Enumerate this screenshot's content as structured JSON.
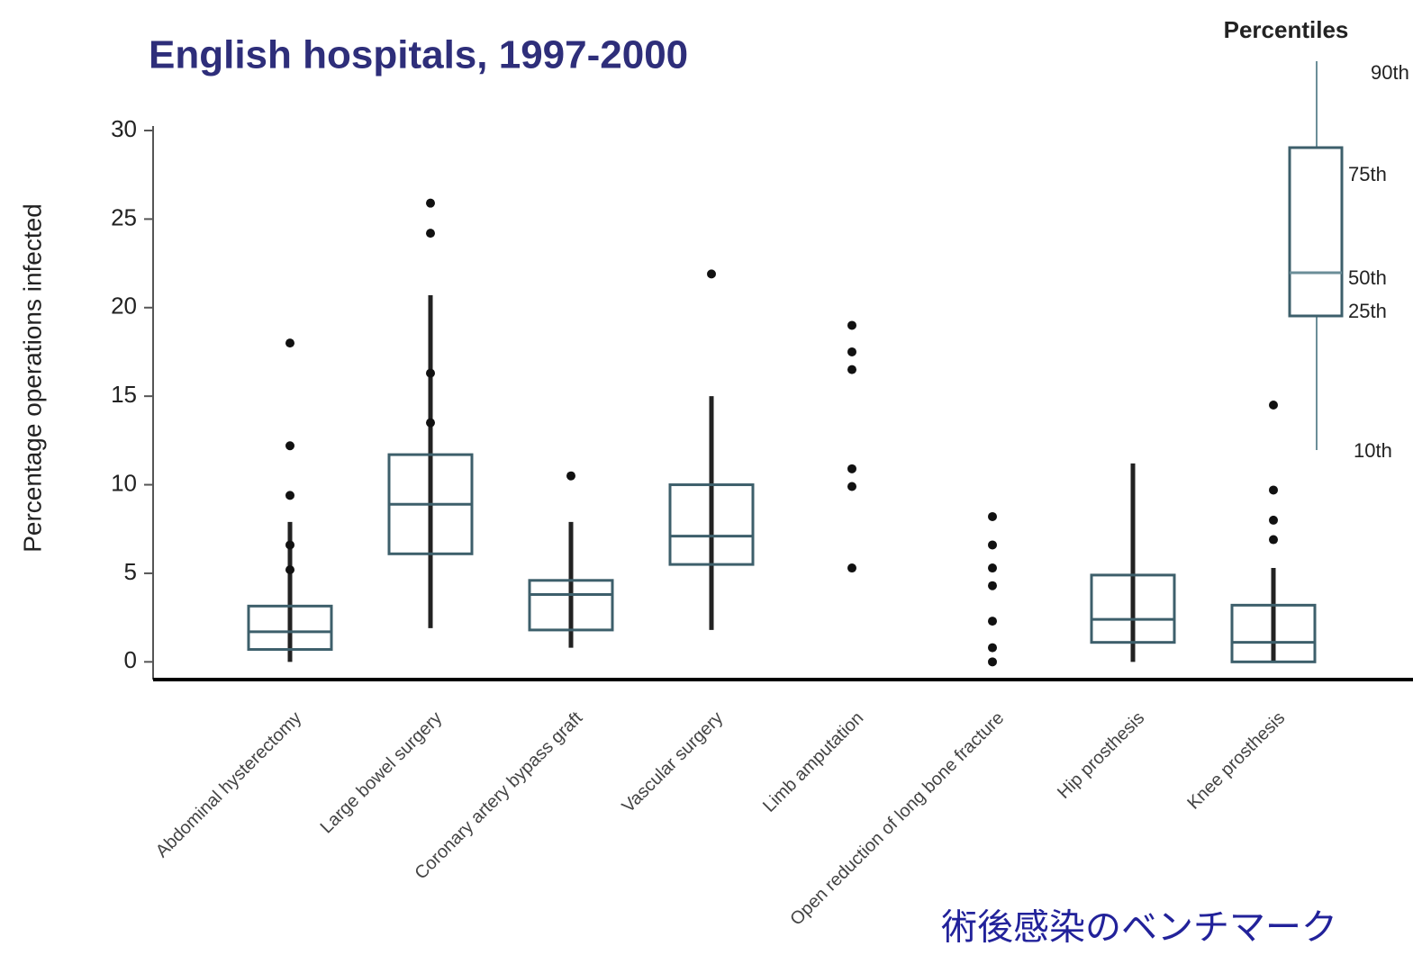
{
  "chart_data": {
    "type": "box",
    "title": "English hospitals, 1997-2000",
    "y_label": "Percentage operations infected",
    "footer": "術後感染のベンチマーク",
    "categories": [
      "Abdominal hysterectomy",
      "Large bowel surgery",
      "Coronary artery bypass graft",
      "Vascular surgery",
      "Limb amputation",
      "Open reduction of long bone fracture",
      "Hip prosthesis",
      "Knee prosthesis"
    ],
    "boxes": [
      {
        "whisker_low": 0,
        "q1": 0.7,
        "median": 1.7,
        "q3": 3.15,
        "whisker_high": 7.9,
        "outliers": [
          18,
          12.2,
          9.4,
          6.6,
          5.2
        ]
      },
      {
        "whisker_low": 1.9,
        "q1": 6.1,
        "median": 8.9,
        "q3": 11.7,
        "whisker_high": 20.7,
        "outliers": [
          25.9,
          24.2,
          16.3,
          13.5
        ]
      },
      {
        "whisker_low": 0.8,
        "q1": 1.8,
        "median": 3.8,
        "q3": 4.6,
        "whisker_high": 7.9,
        "outliers": [
          10.5
        ]
      },
      {
        "whisker_low": 1.8,
        "q1": 5.5,
        "median": 7.1,
        "q3": 10,
        "whisker_high": 15,
        "outliers": [
          21.9
        ]
      },
      {
        "whisker_low": null,
        "q1": null,
        "median": null,
        "q3": null,
        "whisker_high": null,
        "outliers": [
          19,
          17.5,
          16.5,
          10.9,
          9.9,
          5.3
        ]
      },
      {
        "whisker_low": null,
        "q1": null,
        "median": null,
        "q3": null,
        "whisker_high": null,
        "outliers": [
          8.2,
          6.6,
          5.3,
          4.3,
          2.3,
          0.8,
          0
        ]
      },
      {
        "whisker_low": 0,
        "q1": 1.1,
        "median": 2.4,
        "q3": 4.9,
        "whisker_high": 11.2,
        "outliers": []
      },
      {
        "whisker_low": 0,
        "q1": 0,
        "median": 1.1,
        "q3": 3.2,
        "whisker_high": 5.3,
        "outliers": [
          14.5,
          9.7,
          8,
          6.9
        ]
      }
    ],
    "box_color": "#3d5f6b",
    "point_color": "#111111",
    "ylim": [
      -1,
      30
    ],
    "yticks": [
      0,
      5,
      10,
      15,
      20,
      25,
      30
    ],
    "legend": {
      "title": "Percentiles",
      "labels": [
        "90th",
        "75th",
        "50th",
        "25th",
        "10th"
      ]
    }
  }
}
